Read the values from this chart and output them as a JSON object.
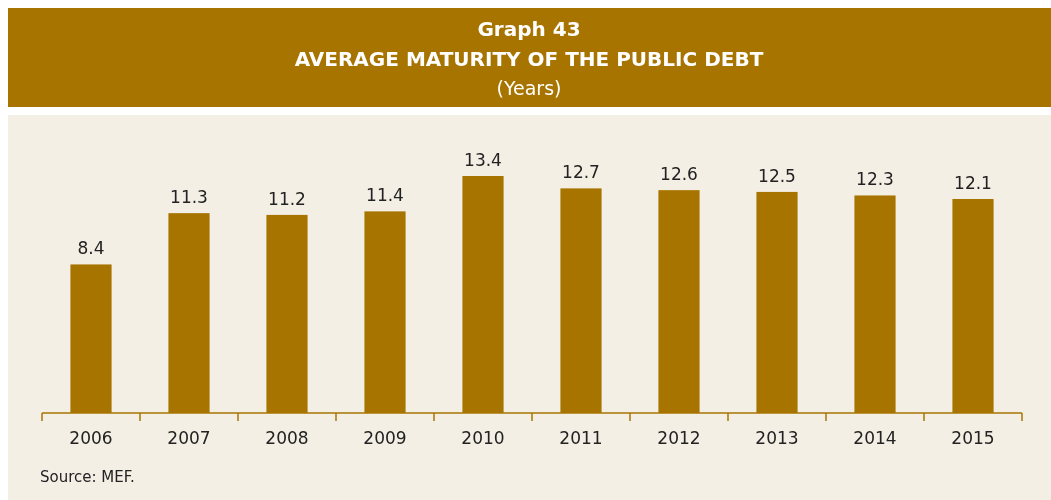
{
  "chart_data": {
    "type": "bar",
    "title": "Graph 43",
    "subtitle": "AVERAGE MATURITY OF THE PUBLIC DEBT",
    "ylabel": "(Years)",
    "categories": [
      "2006",
      "2007",
      "2008",
      "2009",
      "2010",
      "2011",
      "2012",
      "2013",
      "2014",
      "2015"
    ],
    "values": [
      8.4,
      11.3,
      11.2,
      11.4,
      13.4,
      12.7,
      12.6,
      12.5,
      12.3,
      12.1
    ],
    "color": "#a87400",
    "data_labels": true,
    "annotations": [
      "Source: MEF."
    ]
  }
}
